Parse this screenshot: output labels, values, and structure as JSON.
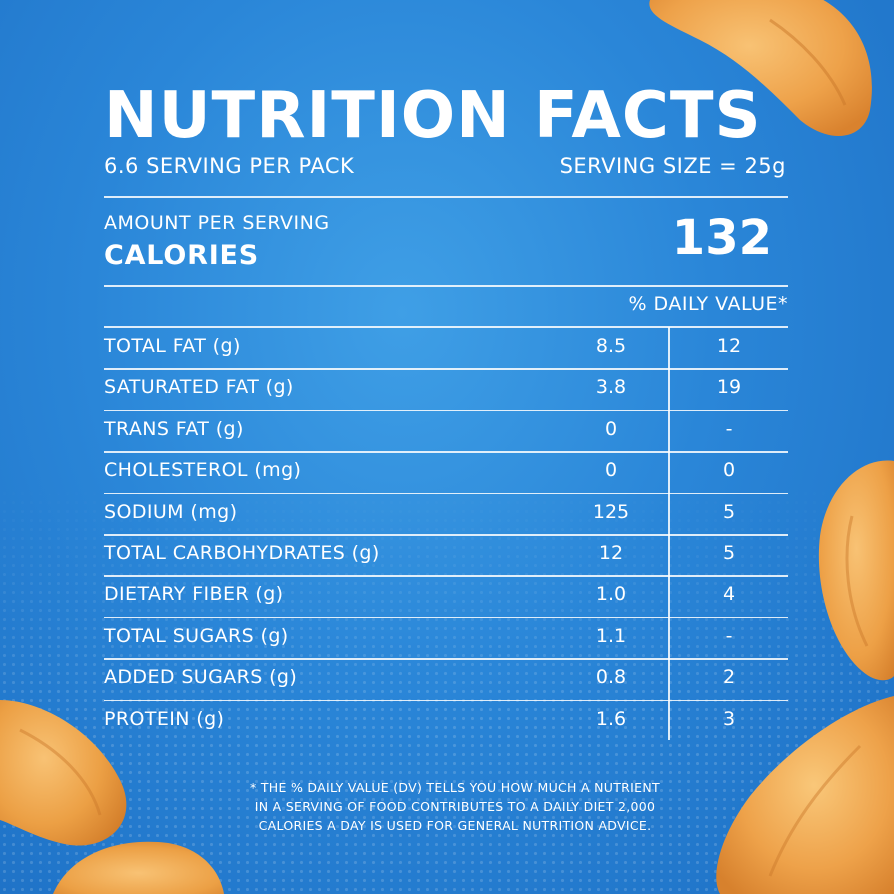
{
  "colors": {
    "background": "#2a86d8",
    "text": "#ffffff",
    "chip": "#f2a64a"
  },
  "panel": {
    "title": "NUTRITION FACTS",
    "servings_per_pack": "6.6 SERVING PER PACK",
    "serving_size": "SERVING SIZE = 25g",
    "amount_per_serving": "AMOUNT PER SERVING",
    "calories_label": "CALORIES",
    "calories_value": "132",
    "daily_value_header": "% DAILY VALUE*",
    "rows": [
      {
        "nutrient": "TOTAL FAT (g)",
        "amount": "8.5",
        "dv": "12"
      },
      {
        "nutrient": "SATURATED FAT (g)",
        "amount": "3.8",
        "dv": "19"
      },
      {
        "nutrient": "TRANS FAT (g)",
        "amount": "0",
        "dv": "-"
      },
      {
        "nutrient": "CHOLESTEROL (mg)",
        "amount": "0",
        "dv": "0"
      },
      {
        "nutrient": "SODIUM (mg)",
        "amount": "125",
        "dv": "5"
      },
      {
        "nutrient": "TOTAL CARBOHYDRATES (g)",
        "amount": "12",
        "dv": "5"
      },
      {
        "nutrient": "DIETARY FIBER (g)",
        "amount": "1.0",
        "dv": "4"
      },
      {
        "nutrient": "TOTAL SUGARS (g)",
        "amount": "1.1",
        "dv": "-"
      },
      {
        "nutrient": "ADDED SUGARS (g)",
        "amount": "0.8",
        "dv": "2"
      },
      {
        "nutrient": "PROTEIN (g)",
        "amount": "1.6",
        "dv": "3"
      }
    ],
    "footnote_lines": [
      "* THE % DAILY VALUE (DV) TELLS YOU HOW MUCH A NUTRIENT",
      "IN A SERVING OF FOOD CONTRIBUTES TO A DAILY DIET 2,000",
      "CALORIES A DAY IS USED FOR GENERAL NUTRITION ADVICE."
    ]
  }
}
